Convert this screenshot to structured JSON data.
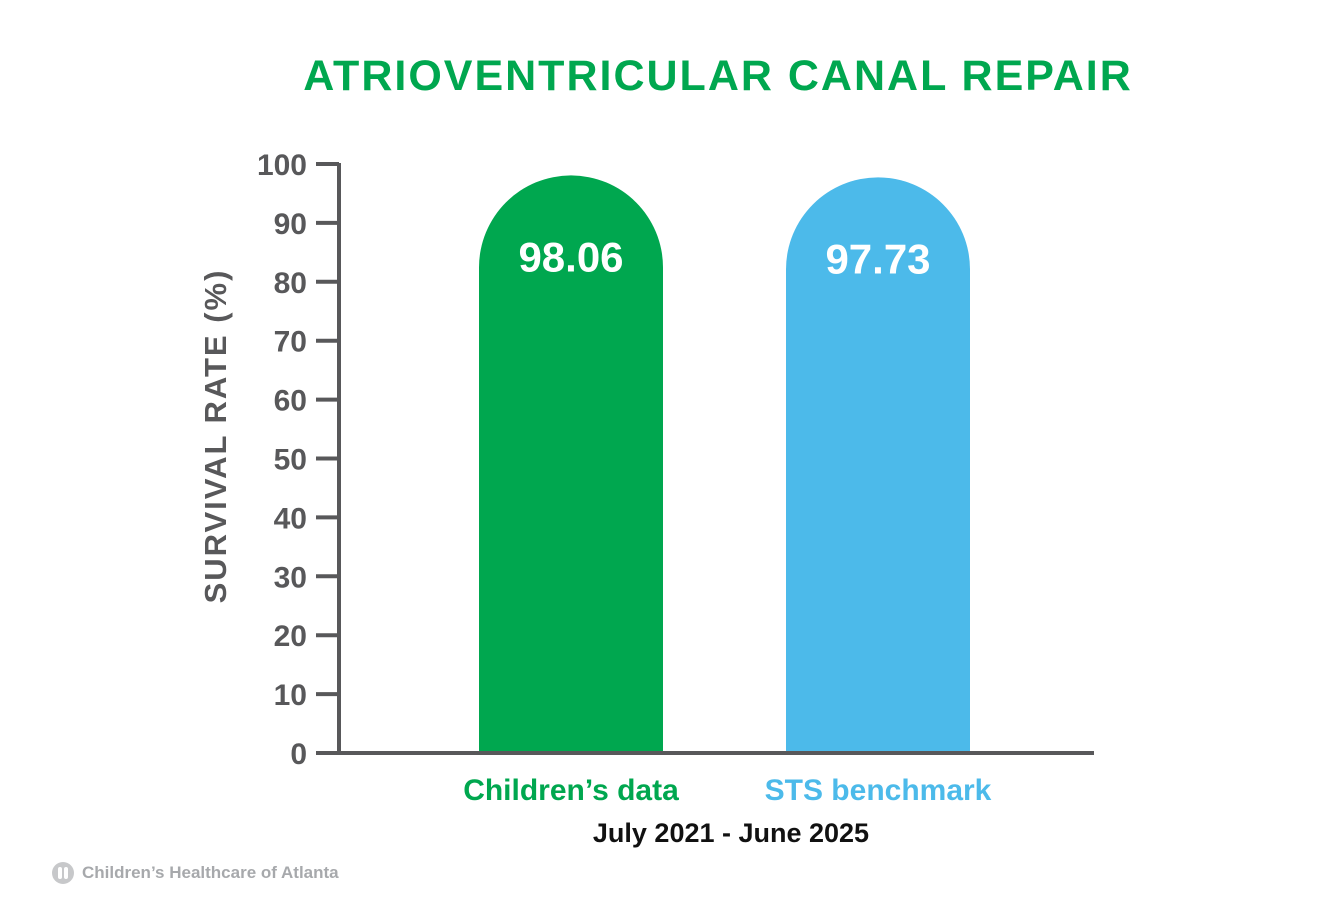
{
  "chart_data": {
    "type": "bar",
    "title": "ATRIOVENTRICULAR CANAL REPAIR",
    "ylabel": "SURVIVAL RATE (%)",
    "xlabel": "July 2021 - June 2025",
    "categories": [
      "Children’s data",
      "STS benchmark"
    ],
    "values": [
      98.06,
      97.73
    ],
    "data_labels": [
      "98.06",
      "97.73"
    ],
    "colors": [
      "#00a74f",
      "#4cbaea"
    ],
    "ylim": [
      0,
      100
    ],
    "yticks": [
      0,
      10,
      20,
      30,
      40,
      50,
      60,
      70,
      80,
      90,
      100
    ],
    "grid": false,
    "legend": "none"
  },
  "colors": {
    "title": "#00a74f",
    "axis": "#58585a",
    "period_text": "#111111",
    "footer_text": "#a7a9ac"
  },
  "footer": {
    "logo_icon": "childrens-healthcare-logo-icon",
    "brand": "Children’s Healthcare of Atlanta"
  }
}
